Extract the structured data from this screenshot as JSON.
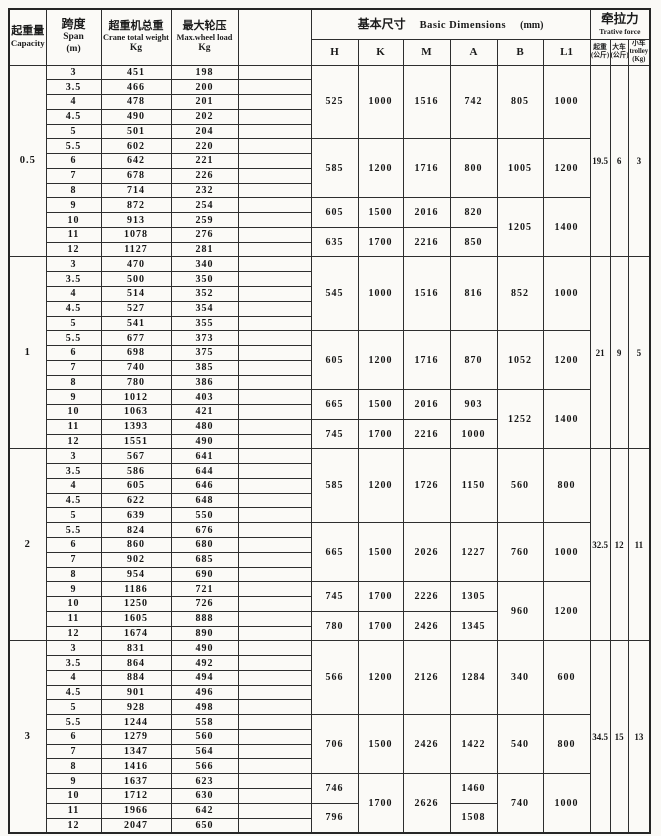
{
  "colors": {
    "paper": "#fbfaf7",
    "line": "#2e2e2e",
    "ink": "#161616"
  },
  "header": {
    "capacity": {
      "zh": "起重量",
      "en": "Capacity"
    },
    "span": {
      "zh": "跨度",
      "en": "Span",
      "unit": "(m)"
    },
    "weight": {
      "zh": "超重机总重",
      "en": "Crane total weight",
      "unit": "Kg"
    },
    "max_wheel": {
      "zh": "最大轮压",
      "en": "Max.wheel load",
      "unit": "Kg"
    },
    "blank_col": "",
    "dimensions": {
      "zh": "基本尺寸",
      "en": "Basic  Dimensions",
      "unit": "(mm)"
    },
    "dim_cols": [
      "H",
      "K",
      "M",
      "A",
      "B",
      "L1"
    ],
    "trative": {
      "zh": "牵拉力",
      "en": "Trative force"
    },
    "trative_cols": [
      {
        "zh": "起重",
        "unit": "(公斤)"
      },
      {
        "zh": "大车",
        "unit": "(公斤)"
      },
      {
        "zh": "小车",
        "en": "trolley",
        "unit": "(Kg)"
      }
    ]
  },
  "chart_data": {
    "type": "table",
    "groups": [
      {
        "capacity": "0.5",
        "rows": [
          {
            "span": "3",
            "weight": "451",
            "wheel": "198"
          },
          {
            "span": "3.5",
            "weight": "466",
            "wheel": "200"
          },
          {
            "span": "4",
            "weight": "478",
            "wheel": "201"
          },
          {
            "span": "4.5",
            "weight": "490",
            "wheel": "202"
          },
          {
            "span": "5",
            "weight": "501",
            "wheel": "204"
          },
          {
            "span": "5.5",
            "weight": "602",
            "wheel": "220"
          },
          {
            "span": "6",
            "weight": "642",
            "wheel": "221"
          },
          {
            "span": "7",
            "weight": "678",
            "wheel": "226"
          },
          {
            "span": "8",
            "weight": "714",
            "wheel": "232"
          },
          {
            "span": "9",
            "weight": "872",
            "wheel": "254"
          },
          {
            "span": "10",
            "weight": "913",
            "wheel": "259"
          },
          {
            "span": "11",
            "weight": "1078",
            "wheel": "276"
          },
          {
            "span": "12",
            "weight": "1127",
            "wheel": "281"
          }
        ],
        "dims": {
          "H": [
            {
              "n": 5,
              "v": "525"
            },
            {
              "n": 4,
              "v": "585"
            },
            {
              "n": 2,
              "v": "605"
            },
            {
              "n": 2,
              "v": "635"
            }
          ],
          "K": [
            {
              "n": 5,
              "v": "1000"
            },
            {
              "n": 4,
              "v": "1200"
            },
            {
              "n": 2,
              "v": "1500"
            },
            {
              "n": 2,
              "v": "1700"
            }
          ],
          "M": [
            {
              "n": 5,
              "v": "1516"
            },
            {
              "n": 4,
              "v": "1716"
            },
            {
              "n": 2,
              "v": "2016"
            },
            {
              "n": 2,
              "v": "2216"
            }
          ],
          "A": [
            {
              "n": 5,
              "v": "742"
            },
            {
              "n": 4,
              "v": "800"
            },
            {
              "n": 2,
              "v": "820"
            },
            {
              "n": 2,
              "v": "850"
            }
          ],
          "B": [
            {
              "n": 5,
              "v": "805"
            },
            {
              "n": 4,
              "v": "1005"
            },
            {
              "n": 4,
              "v": "1205"
            }
          ],
          "L1": [
            {
              "n": 5,
              "v": "1000"
            },
            {
              "n": 4,
              "v": "1200"
            },
            {
              "n": 4,
              "v": "1400"
            }
          ]
        },
        "trative": [
          "19.5",
          "6",
          "3"
        ]
      },
      {
        "capacity": "1",
        "rows": [
          {
            "span": "3",
            "weight": "470",
            "wheel": "340"
          },
          {
            "span": "3.5",
            "weight": "500",
            "wheel": "350"
          },
          {
            "span": "4",
            "weight": "514",
            "wheel": "352"
          },
          {
            "span": "4.5",
            "weight": "527",
            "wheel": "354"
          },
          {
            "span": "5",
            "weight": "541",
            "wheel": "355"
          },
          {
            "span": "5.5",
            "weight": "677",
            "wheel": "373"
          },
          {
            "span": "6",
            "weight": "698",
            "wheel": "375"
          },
          {
            "span": "7",
            "weight": "740",
            "wheel": "385"
          },
          {
            "span": "8",
            "weight": "780",
            "wheel": "386"
          },
          {
            "span": "9",
            "weight": "1012",
            "wheel": "403"
          },
          {
            "span": "10",
            "weight": "1063",
            "wheel": "421"
          },
          {
            "span": "11",
            "weight": "1393",
            "wheel": "480"
          },
          {
            "span": "12",
            "weight": "1551",
            "wheel": "490"
          }
        ],
        "dims": {
          "H": [
            {
              "n": 5,
              "v": "545"
            },
            {
              "n": 4,
              "v": "605"
            },
            {
              "n": 2,
              "v": "665"
            },
            {
              "n": 2,
              "v": "745"
            }
          ],
          "K": [
            {
              "n": 5,
              "v": "1000"
            },
            {
              "n": 4,
              "v": "1200"
            },
            {
              "n": 2,
              "v": "1500"
            },
            {
              "n": 2,
              "v": "1700"
            }
          ],
          "M": [
            {
              "n": 5,
              "v": "1516"
            },
            {
              "n": 4,
              "v": "1716"
            },
            {
              "n": 2,
              "v": "2016"
            },
            {
              "n": 2,
              "v": "2216"
            }
          ],
          "A": [
            {
              "n": 5,
              "v": "816"
            },
            {
              "n": 4,
              "v": "870"
            },
            {
              "n": 2,
              "v": "903"
            },
            {
              "n": 2,
              "v": "1000"
            }
          ],
          "B": [
            {
              "n": 5,
              "v": "852"
            },
            {
              "n": 4,
              "v": "1052"
            },
            {
              "n": 4,
              "v": "1252"
            }
          ],
          "L1": [
            {
              "n": 5,
              "v": "1000"
            },
            {
              "n": 4,
              "v": "1200"
            },
            {
              "n": 4,
              "v": "1400"
            }
          ]
        },
        "trative": [
          "21",
          "9",
          "5"
        ]
      },
      {
        "capacity": "2",
        "rows": [
          {
            "span": "3",
            "weight": "567",
            "wheel": "641"
          },
          {
            "span": "3.5",
            "weight": "586",
            "wheel": "644"
          },
          {
            "span": "4",
            "weight": "605",
            "wheel": "646"
          },
          {
            "span": "4.5",
            "weight": "622",
            "wheel": "648"
          },
          {
            "span": "5",
            "weight": "639",
            "wheel": "550"
          },
          {
            "span": "5.5",
            "weight": "824",
            "wheel": "676"
          },
          {
            "span": "6",
            "weight": "860",
            "wheel": "680"
          },
          {
            "span": "7",
            "weight": "902",
            "wheel": "685"
          },
          {
            "span": "8",
            "weight": "954",
            "wheel": "690"
          },
          {
            "span": "9",
            "weight": "1186",
            "wheel": "721"
          },
          {
            "span": "10",
            "weight": "1250",
            "wheel": "726"
          },
          {
            "span": "11",
            "weight": "1605",
            "wheel": "888"
          },
          {
            "span": "12",
            "weight": "1674",
            "wheel": "890"
          }
        ],
        "dims": {
          "H": [
            {
              "n": 5,
              "v": "585"
            },
            {
              "n": 4,
              "v": "665"
            },
            {
              "n": 2,
              "v": "745"
            },
            {
              "n": 2,
              "v": "780"
            }
          ],
          "K": [
            {
              "n": 5,
              "v": "1200"
            },
            {
              "n": 4,
              "v": "1500"
            },
            {
              "n": 2,
              "v": "1700"
            },
            {
              "n": 2,
              "v": "1700"
            }
          ],
          "M": [
            {
              "n": 5,
              "v": "1726"
            },
            {
              "n": 4,
              "v": "2026"
            },
            {
              "n": 2,
              "v": "2226"
            },
            {
              "n": 2,
              "v": "2426"
            }
          ],
          "A": [
            {
              "n": 5,
              "v": "1150"
            },
            {
              "n": 4,
              "v": "1227"
            },
            {
              "n": 2,
              "v": "1305"
            },
            {
              "n": 2,
              "v": "1345"
            }
          ],
          "B": [
            {
              "n": 5,
              "v": "560"
            },
            {
              "n": 4,
              "v": "760"
            },
            {
              "n": 4,
              "v": "960"
            }
          ],
          "L1": [
            {
              "n": 5,
              "v": "800"
            },
            {
              "n": 4,
              "v": "1000"
            },
            {
              "n": 4,
              "v": "1200"
            }
          ]
        },
        "trative": [
          "32.5",
          "12",
          "11"
        ]
      },
      {
        "capacity": "3",
        "rows": [
          {
            "span": "3",
            "weight": "831",
            "wheel": "490"
          },
          {
            "span": "3.5",
            "weight": "864",
            "wheel": "492"
          },
          {
            "span": "4",
            "weight": "884",
            "wheel": "494"
          },
          {
            "span": "4.5",
            "weight": "901",
            "wheel": "496"
          },
          {
            "span": "5",
            "weight": "928",
            "wheel": "498"
          },
          {
            "span": "5.5",
            "weight": "1244",
            "wheel": "558"
          },
          {
            "span": "6",
            "weight": "1279",
            "wheel": "560"
          },
          {
            "span": "7",
            "weight": "1347",
            "wheel": "564"
          },
          {
            "span": "8",
            "weight": "1416",
            "wheel": "566"
          },
          {
            "span": "9",
            "weight": "1637",
            "wheel": "623"
          },
          {
            "span": "10",
            "weight": "1712",
            "wheel": "630"
          },
          {
            "span": "11",
            "weight": "1966",
            "wheel": "642"
          },
          {
            "span": "12",
            "weight": "2047",
            "wheel": "650"
          }
        ],
        "dims": {
          "H": [
            {
              "n": 5,
              "v": "566"
            },
            {
              "n": 4,
              "v": "706"
            },
            {
              "n": 2,
              "v": "746"
            },
            {
              "n": 2,
              "v": "796"
            }
          ],
          "K": [
            {
              "n": 5,
              "v": "1200"
            },
            {
              "n": 4,
              "v": "1500"
            },
            {
              "n": 4,
              "v": "1700"
            }
          ],
          "M": [
            {
              "n": 5,
              "v": "2126"
            },
            {
              "n": 4,
              "v": "2426"
            },
            {
              "n": 4,
              "v": "2626"
            }
          ],
          "A": [
            {
              "n": 5,
              "v": "1284"
            },
            {
              "n": 4,
              "v": "1422"
            },
            {
              "n": 2,
              "v": "1460"
            },
            {
              "n": 2,
              "v": "1508"
            }
          ],
          "B": [
            {
              "n": 5,
              "v": "340"
            },
            {
              "n": 4,
              "v": "540"
            },
            {
              "n": 4,
              "v": "740"
            }
          ],
          "L1": [
            {
              "n": 5,
              "v": "600"
            },
            {
              "n": 4,
              "v": "800"
            },
            {
              "n": 4,
              "v": "1000"
            }
          ]
        },
        "trative": [
          "34.5",
          "15",
          "13"
        ]
      }
    ]
  }
}
